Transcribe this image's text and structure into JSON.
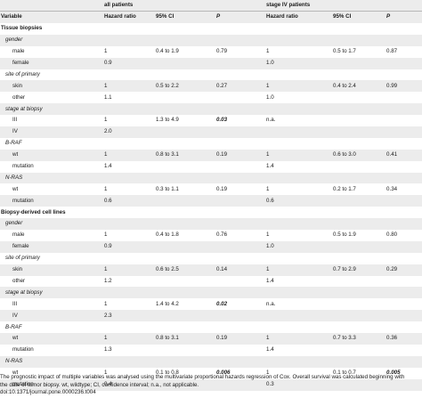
{
  "groups": {
    "all": "all patients",
    "stage4": "stage IV patients"
  },
  "columns": {
    "variable": "Variable",
    "hr": "Hazard ratio",
    "ci": "95% CI",
    "p": "P",
    "hr2": "Hazard ratio",
    "ci2": "95% CI",
    "p2": "P"
  },
  "rows": [
    {
      "kind": "section",
      "label": "Tissue biopsies"
    },
    {
      "kind": "sub",
      "label": "gender"
    },
    {
      "kind": "level",
      "label": "male",
      "hr1": "1",
      "ci1": "0.4 to 1.9",
      "p1": "0.79",
      "hr2": "1",
      "ci2": "0.5 to 1.7",
      "p2": "0.87"
    },
    {
      "kind": "level",
      "label": "female",
      "hr1": "0.9",
      "ci1": "",
      "p1": "",
      "hr2": "1.0",
      "ci2": "",
      "p2": ""
    },
    {
      "kind": "sub",
      "label": "site of primary"
    },
    {
      "kind": "level",
      "label": "skin",
      "hr1": "1",
      "ci1": "0.5 to 2.2",
      "p1": "0.27",
      "hr2": "1",
      "ci2": "0.4 to 2.4",
      "p2": "0.99"
    },
    {
      "kind": "level",
      "label": "other",
      "hr1": "1.1",
      "ci1": "",
      "p1": "",
      "hr2": "1.0",
      "ci2": "",
      "p2": ""
    },
    {
      "kind": "sub",
      "label": "stage at biopsy"
    },
    {
      "kind": "level",
      "label": "III",
      "hr1": "1",
      "ci1": "1.3 to 4.9",
      "p1": "0.03",
      "p1_sig": true,
      "hr2": "n.a.",
      "ci2": "",
      "p2": ""
    },
    {
      "kind": "level",
      "label": "IV",
      "hr1": "2.0",
      "ci1": "",
      "p1": "",
      "hr2": "",
      "ci2": "",
      "p2": ""
    },
    {
      "kind": "sub",
      "label": "B-RAF"
    },
    {
      "kind": "level",
      "label": "wt",
      "hr1": "1",
      "ci1": "0.8 to 3.1",
      "p1": "0.19",
      "hr2": "1",
      "ci2": "0.6 to 3.0",
      "p2": "0.41"
    },
    {
      "kind": "level",
      "label": "mutation",
      "hr1": "1.4",
      "ci1": "",
      "p1": "",
      "hr2": "1.4",
      "ci2": "",
      "p2": ""
    },
    {
      "kind": "sub",
      "label": "N-RAS"
    },
    {
      "kind": "level",
      "label": "wt",
      "hr1": "1",
      "ci1": "0.3 to 1.1",
      "p1": "0.19",
      "hr2": "1",
      "ci2": "0.2 to 1.7",
      "p2": "0.34"
    },
    {
      "kind": "level",
      "label": "mutation",
      "hr1": "0.6",
      "ci1": "",
      "p1": "",
      "hr2": "0.6",
      "ci2": "",
      "p2": ""
    },
    {
      "kind": "section",
      "label": "Biopsy-derived cell lines"
    },
    {
      "kind": "sub",
      "label": "gender"
    },
    {
      "kind": "level",
      "label": "male",
      "hr1": "1",
      "ci1": "0.4 to 1.8",
      "p1": "0.76",
      "hr2": "1",
      "ci2": "0.5 to 1.9",
      "p2": "0.80"
    },
    {
      "kind": "level",
      "label": "female",
      "hr1": "0.9",
      "ci1": "",
      "p1": "",
      "hr2": "1.0",
      "ci2": "",
      "p2": ""
    },
    {
      "kind": "sub",
      "label": "site of primary"
    },
    {
      "kind": "level",
      "label": "skin",
      "hr1": "1",
      "ci1": "0.6 to 2.5",
      "p1": "0.14",
      "hr2": "1",
      "ci2": "0.7 to 2.9",
      "p2": "0.29"
    },
    {
      "kind": "level",
      "label": "other",
      "hr1": "1.2",
      "ci1": "",
      "p1": "",
      "hr2": "1.4",
      "ci2": "",
      "p2": ""
    },
    {
      "kind": "sub",
      "label": "stage at biopsy"
    },
    {
      "kind": "level",
      "label": "III",
      "hr1": "1",
      "ci1": "1.4 to 4.2",
      "p1": "0.02",
      "p1_sig": true,
      "hr2": "n.a.",
      "ci2": "",
      "p2": ""
    },
    {
      "kind": "level",
      "label": "IV",
      "hr1": "2.3",
      "ci1": "",
      "p1": "",
      "hr2": "",
      "ci2": "",
      "p2": ""
    },
    {
      "kind": "sub",
      "label": "B-RAF"
    },
    {
      "kind": "level",
      "label": "wt",
      "hr1": "1",
      "ci1": "0.8 to 3.1",
      "p1": "0.19",
      "hr2": "1",
      "ci2": "0.7 to 3.3",
      "p2": "0.36"
    },
    {
      "kind": "level",
      "label": "mutation",
      "hr1": "1.3",
      "ci1": "",
      "p1": "",
      "hr2": "1.4",
      "ci2": "",
      "p2": ""
    },
    {
      "kind": "sub",
      "label": "N-RAS"
    },
    {
      "kind": "level",
      "label": "wt",
      "hr1": "1",
      "ci1": "0.1 to 0.8",
      "p1": "0.006",
      "p1_sig": true,
      "hr2": "1",
      "ci2": "0.1 to 0.7",
      "p2": "0.005",
      "p2_sig": true
    },
    {
      "kind": "level",
      "label": "mutation",
      "hr1": "0.4",
      "ci1": "",
      "p1": "",
      "hr2": "0.3",
      "ci2": "",
      "p2": ""
    }
  ],
  "footnote": {
    "line1": "The prognostic impact of multiple variables was analysed using the multivariate proportional hazards regression of Cox. Overall survival was calculated beginning with",
    "line2": "the date of tumor biopsy. wt, wildtype; CI, confidence interval; n.a., not applicable.",
    "doi": "doi:10.1371/journal.pone.0000236.t004"
  }
}
